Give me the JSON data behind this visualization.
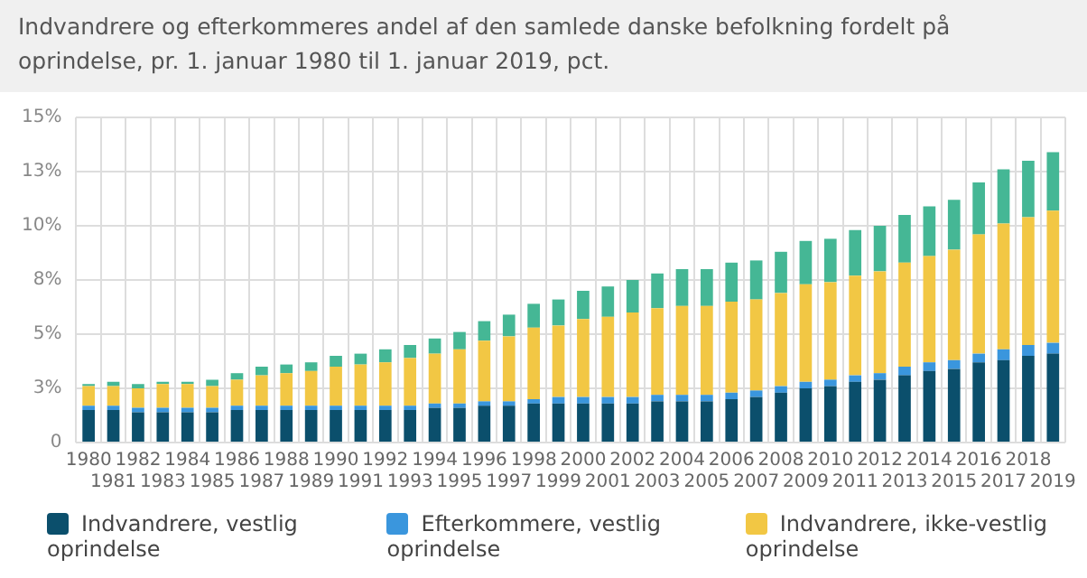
{
  "chart_data": {
    "type": "bar",
    "stacked": true,
    "title": "Indvandrere og efterkommeres andel af den samlede danske befolkning fordelt på oprindelse, pr. 1. januar 1980 til 1. januar 2019, pct.",
    "categories": [
      "1980",
      "1981",
      "1982",
      "1983",
      "1984",
      "1985",
      "1986",
      "1987",
      "1988",
      "1989",
      "1990",
      "1991",
      "1992",
      "1993",
      "1994",
      "1995",
      "1996",
      "1997",
      "1998",
      "1999",
      "2000",
      "2001",
      "2002",
      "2003",
      "2004",
      "2005",
      "2006",
      "2007",
      "2008",
      "2009",
      "2010",
      "2011",
      "2012",
      "2013",
      "2014",
      "2015",
      "2016",
      "2017",
      "2018",
      "2019"
    ],
    "series": [
      {
        "name": "Indvandrere, vestlig oprindelse",
        "color": "#0b4f6c",
        "values": [
          1.5,
          1.5,
          1.4,
          1.4,
          1.4,
          1.4,
          1.5,
          1.5,
          1.5,
          1.5,
          1.5,
          1.5,
          1.5,
          1.5,
          1.6,
          1.6,
          1.7,
          1.7,
          1.8,
          1.8,
          1.8,
          1.8,
          1.8,
          1.9,
          1.9,
          1.9,
          2.0,
          2.1,
          2.3,
          2.5,
          2.6,
          2.8,
          2.9,
          3.1,
          3.3,
          3.4,
          3.7,
          3.8,
          4.0,
          4.1
        ]
      },
      {
        "name": "Efterkommere, vestlig oprindelse",
        "color": "#3a96dd",
        "values": [
          0.2,
          0.2,
          0.2,
          0.2,
          0.2,
          0.2,
          0.2,
          0.2,
          0.2,
          0.2,
          0.2,
          0.2,
          0.2,
          0.2,
          0.2,
          0.2,
          0.2,
          0.2,
          0.2,
          0.3,
          0.3,
          0.3,
          0.3,
          0.3,
          0.3,
          0.3,
          0.3,
          0.3,
          0.3,
          0.3,
          0.3,
          0.3,
          0.3,
          0.4,
          0.4,
          0.4,
          0.4,
          0.5,
          0.5,
          0.5
        ]
      },
      {
        "name": "Indvandrere, ikke-vestlig oprindelse",
        "color": "#f2c744",
        "values": [
          0.9,
          0.9,
          0.9,
          1.1,
          1.1,
          1.0,
          1.2,
          1.4,
          1.5,
          1.6,
          1.8,
          1.9,
          2.0,
          2.2,
          2.3,
          2.5,
          2.8,
          3.0,
          3.3,
          3.3,
          3.6,
          3.7,
          3.9,
          4.0,
          4.1,
          4.1,
          4.2,
          4.2,
          4.3,
          4.5,
          4.5,
          4.6,
          4.7,
          4.8,
          4.9,
          5.1,
          5.5,
          5.8,
          5.9,
          6.1
        ]
      },
      {
        "color": "#45b795",
        "values": [
          0.1,
          0.2,
          0.2,
          0.1,
          0.1,
          0.3,
          0.3,
          0.4,
          0.4,
          0.4,
          0.5,
          0.5,
          0.6,
          0.6,
          0.7,
          0.8,
          0.9,
          1.0,
          1.1,
          1.2,
          1.3,
          1.4,
          1.5,
          1.6,
          1.7,
          1.7,
          1.8,
          1.8,
          1.9,
          2.0,
          2.0,
          2.1,
          2.1,
          2.2,
          2.3,
          2.3,
          2.4,
          2.5,
          2.6,
          2.7
        ]
      }
    ],
    "ylim": [
      0,
      15
    ],
    "yticks": [
      0,
      {
        "value": 2.5,
        "label": "3%"
      },
      {
        "value": 5,
        "label": "5%"
      },
      {
        "value": 7.5,
        "label": "8%"
      },
      {
        "value": 10,
        "label": "10%"
      },
      {
        "value": 12.5,
        "label": "13%"
      },
      {
        "value": 15,
        "label": "15%"
      }
    ],
    "grid": true,
    "legend": "bottom"
  }
}
